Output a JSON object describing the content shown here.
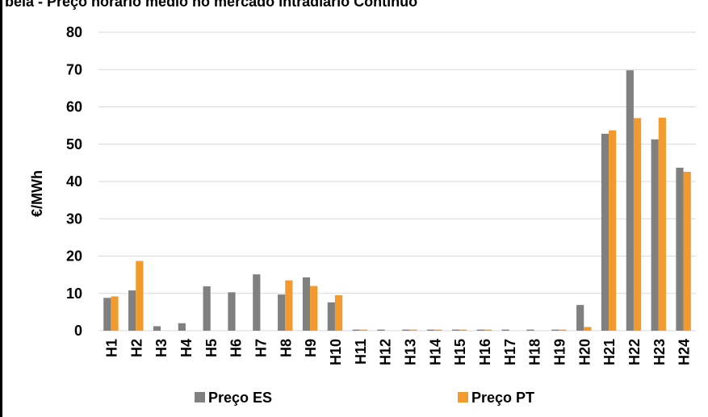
{
  "chart_data": {
    "type": "bar",
    "title": "bela - Preço horário médio no mercado intradiário Contínuo",
    "ylabel": "€/MWh",
    "xlabel": "",
    "ylim": [
      0,
      80
    ],
    "yticks": [
      "0",
      "10",
      "20",
      "30",
      "40",
      "50",
      "60",
      "70",
      "80"
    ],
    "grid": true,
    "legend_position": "bottom",
    "categories": [
      "H1",
      "H2",
      "H3",
      "H4",
      "H5",
      "H6",
      "H7",
      "H8",
      "H9",
      "H10",
      "H11",
      "H12",
      "H13",
      "H14",
      "H15",
      "H16",
      "H17",
      "H18",
      "H19",
      "H20",
      "H21",
      "H22",
      "H23",
      "H24"
    ],
    "series": [
      {
        "name": "Preço ES",
        "color": "#808080",
        "values": [
          8.8,
          10.8,
          1.2,
          2.0,
          11.9,
          10.3,
          15.1,
          9.7,
          14.3,
          7.6,
          0.3,
          0.3,
          0.3,
          0.3,
          0.3,
          0.3,
          0.3,
          0.3,
          0.3,
          6.9,
          52.8,
          69.8,
          51.3,
          43.7
        ]
      },
      {
        "name": "Preço PT",
        "color": "#F39A2F",
        "values": [
          9.2,
          18.7,
          0,
          0,
          0,
          0,
          0,
          13.5,
          12.0,
          9.5,
          0.3,
          0,
          0.3,
          0.3,
          0.3,
          0.3,
          0,
          0,
          0.3,
          1.0,
          53.7,
          57.0,
          57.1,
          42.6
        ]
      }
    ]
  }
}
